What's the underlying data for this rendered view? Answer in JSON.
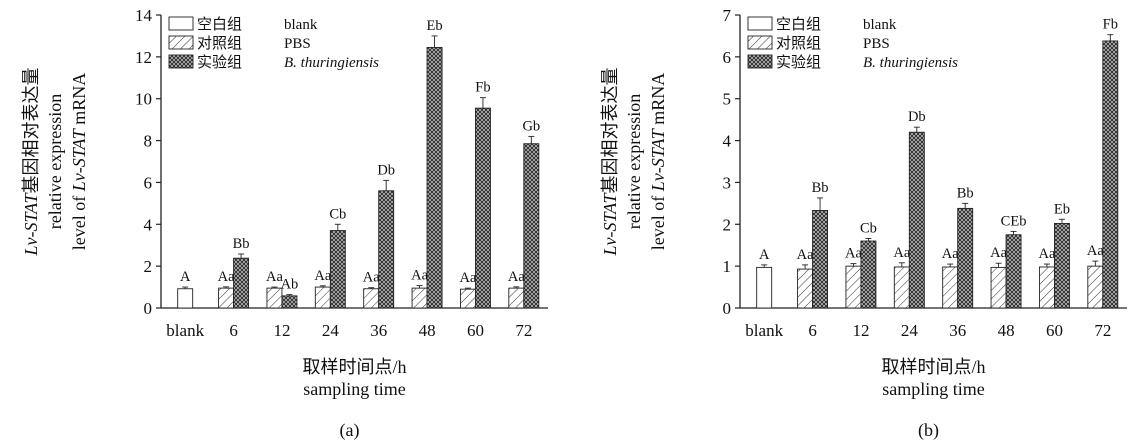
{
  "chart_data": [
    {
      "type": "bar",
      "panel_label": "(a)",
      "xlabel_line1": "取样时间点/h",
      "xlabel_line2": "sampling time",
      "ylabel_line1_prefix": "Lv-STAT",
      "ylabel_line1_suffix": "基因相对表达量",
      "ylabel_line2": "relative expression",
      "ylabel_line3_prefix": "level of ",
      "ylabel_line3_italic": "Lv-STAT",
      "ylabel_line3_suffix": " mRNA",
      "ylim": [
        0,
        14
      ],
      "yticks": [
        0,
        2,
        4,
        6,
        8,
        10,
        12,
        14
      ],
      "categories": [
        "blank",
        "6",
        "12",
        "24",
        "36",
        "48",
        "60",
        "72"
      ],
      "legend": [
        {
          "zh": "空白组",
          "en": "blank",
          "italic": false,
          "pattern": "blank"
        },
        {
          "zh": "对照组",
          "en": "PBS",
          "italic": false,
          "pattern": "hatch"
        },
        {
          "zh": "实验组",
          "en": "B. thuringiensis",
          "italic": true,
          "pattern": "cross"
        }
      ],
      "series": [
        {
          "pattern": "blank",
          "values": [
            0.92,
            null,
            null,
            null,
            null,
            null,
            null,
            null
          ],
          "errors": [
            0.08,
            null,
            null,
            null,
            null,
            null,
            null,
            null
          ],
          "labels": [
            "A",
            "",
            "",
            "",
            "",
            "",
            "",
            ""
          ]
        },
        {
          "pattern": "hatch",
          "values": [
            null,
            0.95,
            0.95,
            1.0,
            0.92,
            0.95,
            0.9,
            0.95
          ],
          "errors": [
            null,
            0.06,
            0.05,
            0.06,
            0.05,
            0.12,
            0.05,
            0.06
          ],
          "labels": [
            "",
            "Aa",
            "Aa",
            "Aa",
            "Aa",
            "Aa",
            "Aa",
            "Aa"
          ]
        },
        {
          "pattern": "cross",
          "values": [
            null,
            2.38,
            0.58,
            3.7,
            5.6,
            12.45,
            9.55,
            7.85
          ],
          "errors": [
            null,
            0.2,
            0.06,
            0.3,
            0.5,
            0.55,
            0.5,
            0.35
          ],
          "labels": [
            "",
            "Bb",
            "Ab",
            "Cb",
            "Db",
            "Eb",
            "Fb",
            "Gb"
          ]
        }
      ]
    },
    {
      "type": "bar",
      "panel_label": "(b)",
      "xlabel_line1": "取样时间点/h",
      "xlabel_line2": "sampling time",
      "ylabel_line1_prefix": "Lv-STAT",
      "ylabel_line1_suffix": "基因相对表达量",
      "ylabel_line2": "relative expression",
      "ylabel_line3_prefix": "level of ",
      "ylabel_line3_italic": "Lv-STAT",
      "ylabel_line3_suffix": " mRNA",
      "ylim": [
        0,
        7
      ],
      "yticks": [
        0,
        1,
        2,
        3,
        4,
        5,
        6,
        7
      ],
      "categories": [
        "blank",
        "6",
        "12",
        "24",
        "36",
        "48",
        "60",
        "72"
      ],
      "legend": [
        {
          "zh": "空白组",
          "en": "blank",
          "italic": false,
          "pattern": "blank"
        },
        {
          "zh": "对照组",
          "en": "PBS",
          "italic": false,
          "pattern": "hatch"
        },
        {
          "zh": "实验组",
          "en": "B. thuringiensis",
          "italic": true,
          "pattern": "cross"
        }
      ],
      "series": [
        {
          "pattern": "blank",
          "values": [
            0.97,
            null,
            null,
            null,
            null,
            null,
            null,
            null
          ],
          "errors": [
            0.06,
            null,
            null,
            null,
            null,
            null,
            null,
            null
          ],
          "labels": [
            "A",
            "",
            "",
            "",
            "",
            "",
            "",
            ""
          ]
        },
        {
          "pattern": "hatch",
          "values": [
            null,
            0.93,
            1.0,
            0.98,
            0.98,
            0.97,
            0.98,
            1.0
          ],
          "errors": [
            null,
            0.1,
            0.06,
            0.1,
            0.07,
            0.1,
            0.07,
            0.12
          ],
          "labels": [
            "",
            "Aa",
            "Aa",
            "Aa",
            "Aa",
            "Aa",
            "Aa",
            "Aa"
          ]
        },
        {
          "pattern": "cross",
          "values": [
            null,
            2.33,
            1.6,
            4.2,
            2.38,
            1.75,
            2.02,
            6.38
          ],
          "errors": [
            null,
            0.3,
            0.06,
            0.12,
            0.12,
            0.08,
            0.1,
            0.15
          ],
          "labels": [
            "",
            "Bb",
            "Cb",
            "Db",
            "Bb",
            "CEb",
            "Eb",
            "Fb"
          ]
        }
      ]
    }
  ]
}
